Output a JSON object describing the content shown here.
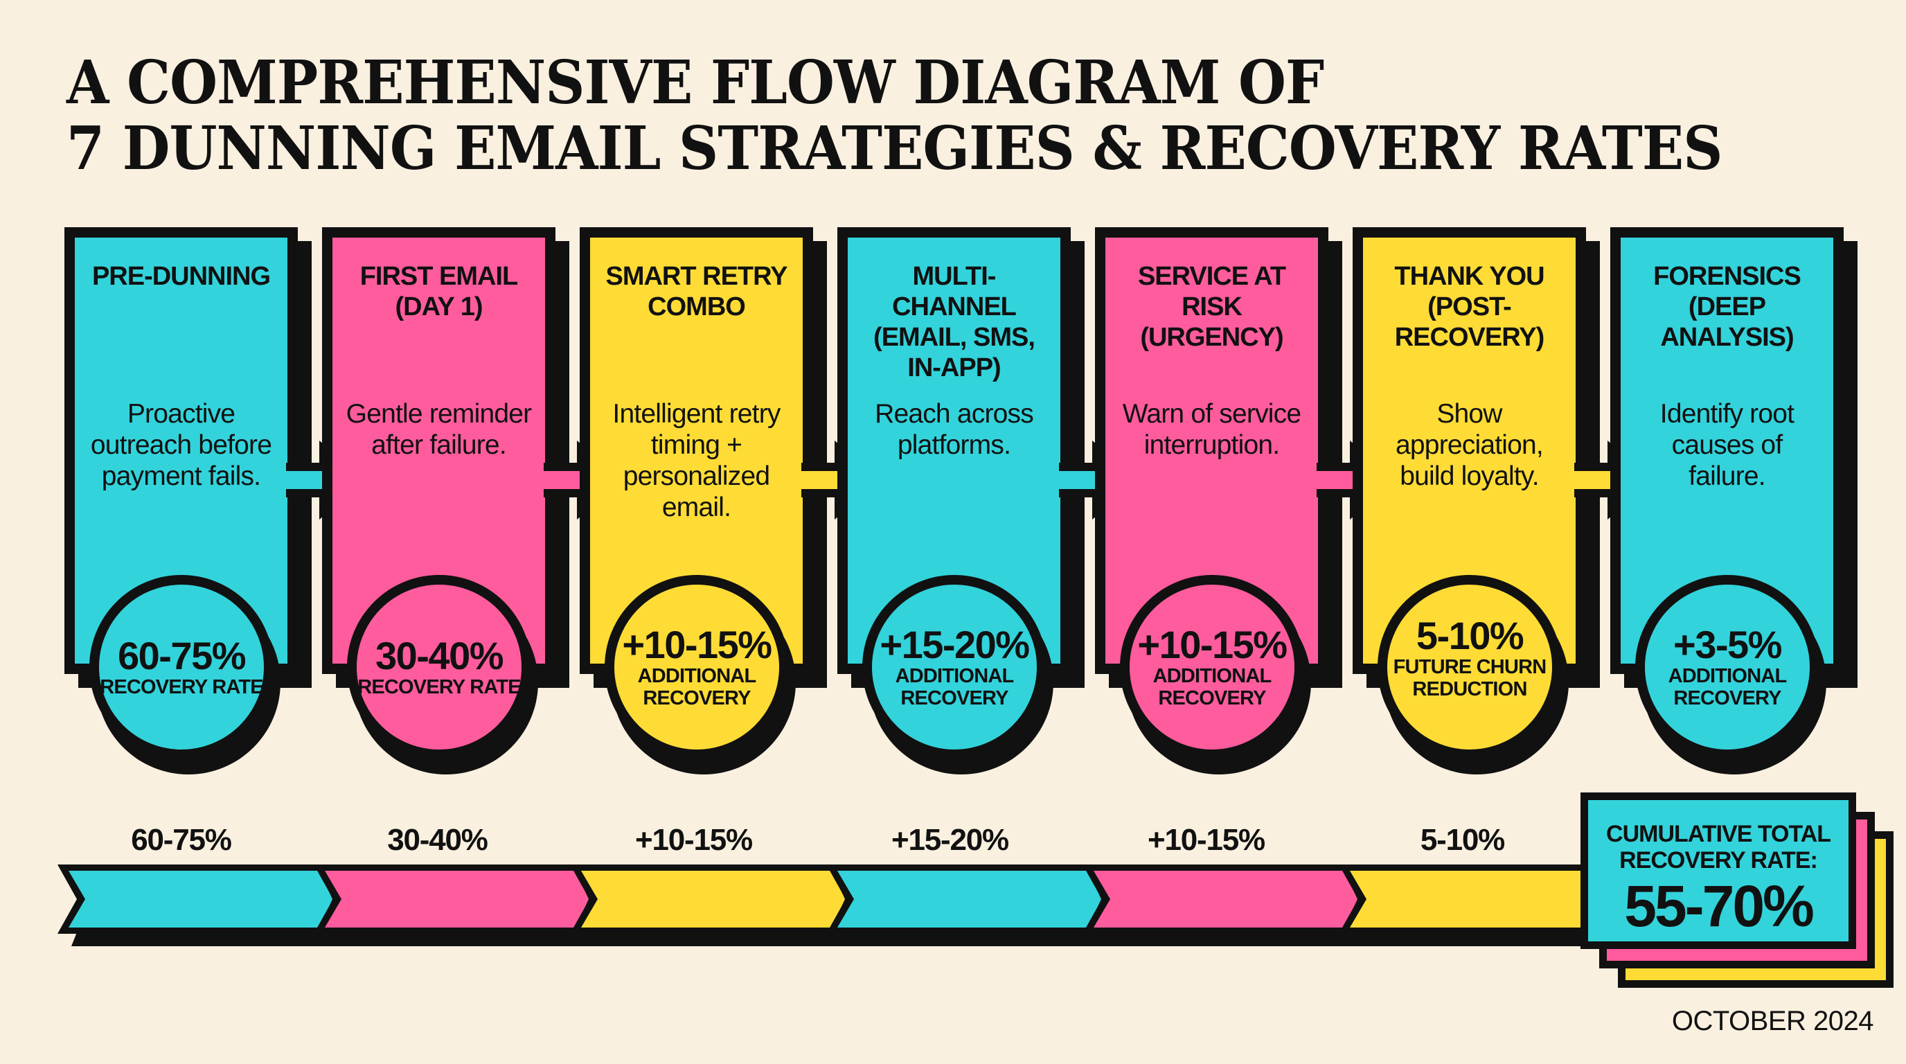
{
  "title": {
    "line1": "A COMPREHENSIVE FLOW DIAGRAM OF",
    "line2": "7 DUNNING EMAIL STRATEGIES & RECOVERY RATES"
  },
  "colors": {
    "background": "#FAF0E0",
    "cyan": "#33D3DB",
    "pink": "#FF5C9D",
    "yellow": "#FFDC35",
    "outline": "#111111"
  },
  "stages": [
    {
      "heading": "PRE-DUNNING",
      "description": "Proactive outreach before payment fails.",
      "badge_value": "60-75%",
      "badge_label": "RECOVERY RATE",
      "color": "#33D3DB"
    },
    {
      "heading": "FIRST EMAIL (DAY 1)",
      "description": "Gentle reminder after failure.",
      "badge_value": "30-40%",
      "badge_label": "RECOVERY RATE",
      "color": "#FF5C9D"
    },
    {
      "heading": "SMART RETRY COMBO",
      "description": "Intelligent retry timing + personalized email.",
      "badge_value": "+10-15%",
      "badge_label": "ADDITIONAL RECOVERY",
      "color": "#FFDC35"
    },
    {
      "heading": "MULTI-CHANNEL (EMAIL, SMS, IN-APP)",
      "description": "Reach across platforms.",
      "badge_value": "+15-20%",
      "badge_label": "ADDITIONAL RECOVERY",
      "color": "#33D3DB"
    },
    {
      "heading": "SERVICE AT RISK (URGENCY)",
      "description": "Warn of service interruption.",
      "badge_value": "+10-15%",
      "badge_label": "ADDITIONAL RECOVERY",
      "color": "#FF5C9D"
    },
    {
      "heading": "THANK YOU (POST-RECOVERY)",
      "description": "Show appreciation, build loyalty.",
      "badge_value": "5-10%",
      "badge_label": "FUTURE CHURN REDUCTION",
      "color": "#FFDC35"
    },
    {
      "heading": "FORENSICS (DEEP ANALYSIS)",
      "description": "Identify root causes of failure.",
      "badge_value": "+3-5%",
      "badge_label": "ADDITIONAL RECOVERY",
      "color": "#33D3DB"
    }
  ],
  "timeline": {
    "labels": [
      "60-75%",
      "30-40%",
      "+10-15%",
      "+15-20%",
      "+10-15%",
      "5-10%"
    ],
    "colors": [
      "#33D3DB",
      "#FF5C9D",
      "#FFDC35",
      "#33D3DB",
      "#FF5C9D",
      "#FFDC35"
    ]
  },
  "cumulative": {
    "label": "CUMULATIVE TOTAL RECOVERY RATE:",
    "value": "55-70%"
  },
  "footer": {
    "date": "OCTOBER 2024"
  }
}
